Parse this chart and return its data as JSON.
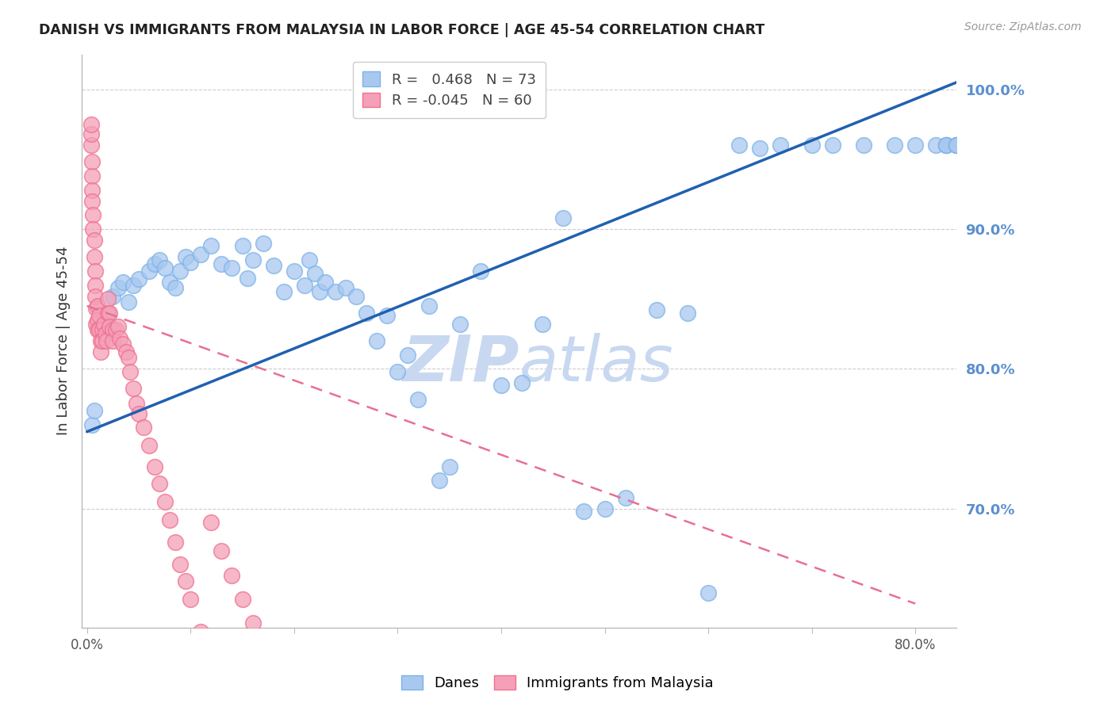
{
  "title": "DANISH VS IMMIGRANTS FROM MALAYSIA IN LABOR FORCE | AGE 45-54 CORRELATION CHART",
  "source": "Source: ZipAtlas.com",
  "ylabel": "In Labor Force | Age 45-54",
  "xlim": [
    -0.005,
    0.84
  ],
  "ylim": [
    0.615,
    1.025
  ],
  "yticks_right": [
    0.7,
    0.8,
    0.9,
    1.0
  ],
  "yticklabels_right": [
    "70.0%",
    "80.0%",
    "90.0%",
    "100.0%"
  ],
  "blue_r": 0.468,
  "blue_n": 73,
  "pink_r": -0.045,
  "pink_n": 60,
  "legend_blue": "Danes",
  "legend_pink": "Immigrants from Malaysia",
  "blue_color": "#A8C8F0",
  "pink_color": "#F4A0B8",
  "blue_edge_color": "#7EB3E8",
  "pink_edge_color": "#F07090",
  "blue_line_color": "#2060B0",
  "pink_line_color": "#E87090",
  "watermark_zip": "ZIP",
  "watermark_atlas": "atlas",
  "watermark_color": "#C8D8F0",
  "background_color": "#FFFFFF",
  "blue_x": [
    0.005,
    0.007,
    0.02,
    0.025,
    0.03,
    0.035,
    0.04,
    0.045,
    0.05,
    0.06,
    0.065,
    0.07,
    0.075,
    0.08,
    0.085,
    0.09,
    0.095,
    0.1,
    0.11,
    0.12,
    0.13,
    0.14,
    0.15,
    0.155,
    0.16,
    0.17,
    0.18,
    0.19,
    0.2,
    0.21,
    0.215,
    0.22,
    0.225,
    0.23,
    0.24,
    0.25,
    0.26,
    0.27,
    0.28,
    0.29,
    0.3,
    0.31,
    0.32,
    0.33,
    0.34,
    0.35,
    0.36,
    0.38,
    0.4,
    0.42,
    0.44,
    0.46,
    0.48,
    0.5,
    0.52,
    0.55,
    0.58,
    0.6,
    0.63,
    0.65,
    0.67,
    0.7,
    0.72,
    0.75,
    0.78,
    0.8,
    0.82,
    0.83,
    0.83,
    0.83,
    0.84,
    0.84,
    0.84
  ],
  "blue_y": [
    0.76,
    0.77,
    0.84,
    0.852,
    0.858,
    0.862,
    0.848,
    0.86,
    0.864,
    0.87,
    0.875,
    0.878,
    0.872,
    0.862,
    0.858,
    0.87,
    0.88,
    0.876,
    0.882,
    0.888,
    0.875,
    0.872,
    0.888,
    0.865,
    0.878,
    0.89,
    0.874,
    0.855,
    0.87,
    0.86,
    0.878,
    0.868,
    0.855,
    0.862,
    0.855,
    0.858,
    0.852,
    0.84,
    0.82,
    0.838,
    0.798,
    0.81,
    0.778,
    0.845,
    0.72,
    0.73,
    0.832,
    0.87,
    0.788,
    0.79,
    0.832,
    0.908,
    0.698,
    0.7,
    0.708,
    0.842,
    0.84,
    0.64,
    0.96,
    0.958,
    0.96,
    0.96,
    0.96,
    0.96,
    0.96,
    0.96,
    0.96,
    0.96,
    0.96,
    0.96,
    0.96,
    0.96,
    0.96
  ],
  "pink_x": [
    0.004,
    0.004,
    0.004,
    0.005,
    0.005,
    0.005,
    0.005,
    0.006,
    0.006,
    0.007,
    0.007,
    0.008,
    0.008,
    0.008,
    0.009,
    0.009,
    0.01,
    0.01,
    0.01,
    0.012,
    0.012,
    0.013,
    0.013,
    0.015,
    0.015,
    0.016,
    0.018,
    0.019,
    0.02,
    0.02,
    0.022,
    0.022,
    0.025,
    0.025,
    0.028,
    0.03,
    0.032,
    0.035,
    0.038,
    0.04,
    0.042,
    0.045,
    0.048,
    0.05,
    0.055,
    0.06,
    0.065,
    0.07,
    0.075,
    0.08,
    0.085,
    0.09,
    0.095,
    0.1,
    0.11,
    0.12,
    0.13,
    0.14,
    0.15,
    0.16
  ],
  "pink_y": [
    0.96,
    0.968,
    0.975,
    0.948,
    0.938,
    0.928,
    0.92,
    0.91,
    0.9,
    0.892,
    0.88,
    0.87,
    0.86,
    0.852,
    0.843,
    0.832,
    0.845,
    0.835,
    0.828,
    0.838,
    0.828,
    0.82,
    0.812,
    0.828,
    0.82,
    0.832,
    0.825,
    0.82,
    0.84,
    0.85,
    0.84,
    0.83,
    0.828,
    0.82,
    0.828,
    0.83,
    0.822,
    0.818,
    0.812,
    0.808,
    0.798,
    0.786,
    0.775,
    0.768,
    0.758,
    0.745,
    0.73,
    0.718,
    0.705,
    0.692,
    0.676,
    0.66,
    0.648,
    0.635,
    0.612,
    0.69,
    0.67,
    0.652,
    0.635,
    0.618
  ]
}
